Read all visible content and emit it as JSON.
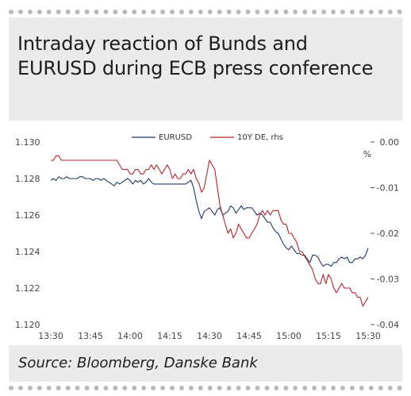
{
  "title": "Intraday reaction of Bunds and EURUSD during ECB press conference",
  "source": "Source: Bloomberg, Danske Bank",
  "chart_data": {
    "type": "line",
    "x": [
      "13:30",
      "13:45",
      "14:00",
      "14:15",
      "14:30",
      "14:45",
      "15:00",
      "15:15",
      "15:30"
    ],
    "y_left": {
      "ticks": [
        "1.130",
        "1.128",
        "1.126",
        "1.124",
        "1.122",
        "1.120"
      ],
      "lim": [
        1.12,
        1.13
      ]
    },
    "y_right": {
      "ticks": [
        "0.00",
        "-0.01",
        "-0.02",
        "-0.03",
        "-0.04"
      ],
      "lim": [
        -0.04,
        0.0
      ],
      "unit": "%"
    },
    "series": [
      {
        "name": "EURUSD",
        "axis": "left",
        "color": "#1f3a5f",
        "points": [
          [
            0,
            1.1279
          ],
          [
            1,
            1.128
          ],
          [
            2,
            1.1279
          ],
          [
            3,
            1.1281
          ],
          [
            4,
            1.128
          ],
          [
            5,
            1.128
          ],
          [
            6,
            1.1281
          ],
          [
            7,
            1.128
          ],
          [
            8,
            1.128
          ],
          [
            9,
            1.128
          ],
          [
            10,
            1.128
          ],
          [
            11,
            1.1281
          ],
          [
            12,
            1.1281
          ],
          [
            13,
            1.128
          ],
          [
            14,
            1.128
          ],
          [
            15,
            1.128
          ],
          [
            16,
            1.1279
          ],
          [
            17,
            1.128
          ],
          [
            18,
            1.128
          ],
          [
            19,
            1.1279
          ],
          [
            20,
            1.128
          ],
          [
            21,
            1.1279
          ],
          [
            22,
            1.1278
          ],
          [
            23,
            1.1277
          ],
          [
            24,
            1.1276
          ],
          [
            25,
            1.1278
          ],
          [
            26,
            1.1277
          ],
          [
            27,
            1.1278
          ],
          [
            28,
            1.1279
          ],
          [
            29,
            1.128
          ],
          [
            30,
            1.1279
          ],
          [
            31,
            1.1277
          ],
          [
            32,
            1.1279
          ],
          [
            33,
            1.1278
          ],
          [
            34,
            1.1279
          ],
          [
            35,
            1.1277
          ],
          [
            36,
            1.1278
          ],
          [
            37,
            1.128
          ],
          [
            38,
            1.1278
          ],
          [
            39,
            1.1277
          ],
          [
            40,
            1.1277
          ],
          [
            41,
            1.1277
          ],
          [
            42,
            1.1277
          ],
          [
            43,
            1.1277
          ],
          [
            44,
            1.1277
          ],
          [
            45,
            1.1277
          ],
          [
            46,
            1.1277
          ],
          [
            47,
            1.1277
          ],
          [
            48,
            1.1277
          ],
          [
            49,
            1.1277
          ],
          [
            50,
            1.1277
          ],
          [
            51,
            1.1277
          ],
          [
            52,
            1.1278
          ],
          [
            53,
            1.1279
          ],
          [
            54,
            1.1275
          ],
          [
            55,
            1.1268
          ],
          [
            56,
            1.1262
          ],
          [
            57,
            1.1258
          ],
          [
            58,
            1.1262
          ],
          [
            59,
            1.1263
          ],
          [
            60,
            1.1264
          ],
          [
            61,
            1.1262
          ],
          [
            62,
            1.126
          ],
          [
            63,
            1.1263
          ],
          [
            64,
            1.1264
          ],
          [
            65,
            1.126
          ],
          [
            66,
            1.1261
          ],
          [
            67,
            1.1262
          ],
          [
            68,
            1.1265
          ],
          [
            69,
            1.1264
          ],
          [
            70,
            1.1261
          ],
          [
            71,
            1.1263
          ],
          [
            72,
            1.1265
          ],
          [
            73,
            1.1263
          ],
          [
            74,
            1.1264
          ],
          [
            75,
            1.1264
          ],
          [
            76,
            1.1264
          ],
          [
            77,
            1.1262
          ],
          [
            78,
            1.126
          ],
          [
            79,
            1.1261
          ],
          [
            80,
            1.126
          ],
          [
            81,
            1.1258
          ],
          [
            82,
            1.1256
          ],
          [
            83,
            1.1256
          ],
          [
            84,
            1.1253
          ],
          [
            85,
            1.1251
          ],
          [
            86,
            1.125
          ],
          [
            87,
            1.1247
          ],
          [
            88,
            1.1244
          ],
          [
            89,
            1.1242
          ],
          [
            90,
            1.1241
          ],
          [
            91,
            1.1243
          ],
          [
            92,
            1.1241
          ],
          [
            93,
            1.1239
          ],
          [
            94,
            1.1239
          ],
          [
            95,
            1.1238
          ],
          [
            96,
            1.1238
          ],
          [
            97,
            1.1236
          ],
          [
            98,
            1.1234
          ],
          [
            99,
            1.1238
          ],
          [
            100,
            1.1238
          ],
          [
            101,
            1.1237
          ],
          [
            102,
            1.1234
          ],
          [
            103,
            1.1232
          ],
          [
            104,
            1.1233
          ],
          [
            105,
            1.1233
          ],
          [
            106,
            1.1232
          ],
          [
            107,
            1.1234
          ],
          [
            108,
            1.1234
          ],
          [
            109,
            1.1236
          ],
          [
            110,
            1.1237
          ],
          [
            111,
            1.1236
          ],
          [
            112,
            1.1237
          ],
          [
            113,
            1.1234
          ],
          [
            114,
            1.1234
          ],
          [
            115,
            1.1236
          ],
          [
            116,
            1.1236
          ],
          [
            117,
            1.1237
          ],
          [
            118,
            1.1236
          ],
          [
            119,
            1.1238
          ],
          [
            120,
            1.1242
          ]
        ]
      },
      {
        "name": "10Y DE, rhs",
        "axis": "right",
        "color": "#b3242e",
        "points": [
          [
            0,
            -0.004
          ],
          [
            1,
            -0.004
          ],
          [
            2,
            -0.003
          ],
          [
            3,
            -0.003
          ],
          [
            4,
            -0.004
          ],
          [
            5,
            -0.004
          ],
          [
            6,
            -0.004
          ],
          [
            7,
            -0.004
          ],
          [
            8,
            -0.004
          ],
          [
            9,
            -0.004
          ],
          [
            10,
            -0.004
          ],
          [
            11,
            -0.004
          ],
          [
            12,
            -0.004
          ],
          [
            13,
            -0.004
          ],
          [
            14,
            -0.004
          ],
          [
            15,
            -0.004
          ],
          [
            16,
            -0.004
          ],
          [
            17,
            -0.004
          ],
          [
            18,
            -0.004
          ],
          [
            19,
            -0.004
          ],
          [
            20,
            -0.004
          ],
          [
            21,
            -0.004
          ],
          [
            22,
            -0.004
          ],
          [
            23,
            -0.004
          ],
          [
            24,
            -0.004
          ],
          [
            25,
            -0.004
          ],
          [
            26,
            -0.005
          ],
          [
            27,
            -0.006
          ],
          [
            28,
            -0.006
          ],
          [
            29,
            -0.006
          ],
          [
            30,
            -0.007
          ],
          [
            31,
            -0.007
          ],
          [
            32,
            -0.006
          ],
          [
            33,
            -0.006
          ],
          [
            34,
            -0.007
          ],
          [
            35,
            -0.007
          ],
          [
            36,
            -0.006
          ],
          [
            37,
            -0.006
          ],
          [
            38,
            -0.005
          ],
          [
            39,
            -0.006
          ],
          [
            40,
            -0.005
          ],
          [
            41,
            -0.006
          ],
          [
            42,
            -0.007
          ],
          [
            43,
            -0.006
          ],
          [
            44,
            -0.005
          ],
          [
            45,
            -0.006
          ],
          [
            46,
            -0.008
          ],
          [
            47,
            -0.007
          ],
          [
            48,
            -0.008
          ],
          [
            49,
            -0.008
          ],
          [
            50,
            -0.007
          ],
          [
            51,
            -0.007
          ],
          [
            52,
            -0.006
          ],
          [
            53,
            -0.007
          ],
          [
            54,
            -0.006
          ],
          [
            55,
            -0.008
          ],
          [
            56,
            -0.009
          ],
          [
            57,
            -0.011
          ],
          [
            58,
            -0.01
          ],
          [
            59,
            -0.007
          ],
          [
            60,
            -0.004
          ],
          [
            61,
            -0.005
          ],
          [
            62,
            -0.006
          ],
          [
            63,
            -0.01
          ],
          [
            64,
            -0.014
          ],
          [
            65,
            -0.016
          ],
          [
            66,
            -0.018
          ],
          [
            67,
            -0.02
          ],
          [
            68,
            -0.019
          ],
          [
            69,
            -0.021
          ],
          [
            70,
            -0.02
          ],
          [
            71,
            -0.018
          ],
          [
            72,
            -0.019
          ],
          [
            73,
            -0.02
          ],
          [
            74,
            -0.021
          ],
          [
            75,
            -0.021
          ],
          [
            76,
            -0.02
          ],
          [
            77,
            -0.019
          ],
          [
            78,
            -0.018
          ],
          [
            79,
            -0.016
          ],
          [
            80,
            -0.015
          ],
          [
            81,
            -0.016
          ],
          [
            82,
            -0.015
          ],
          [
            83,
            -0.016
          ],
          [
            84,
            -0.015
          ],
          [
            85,
            -0.015
          ],
          [
            86,
            -0.015
          ],
          [
            87,
            -0.017
          ],
          [
            88,
            -0.018
          ],
          [
            89,
            -0.018
          ],
          [
            90,
            -0.02
          ],
          [
            91,
            -0.02
          ],
          [
            92,
            -0.021
          ],
          [
            93,
            -0.022
          ],
          [
            94,
            -0.024
          ],
          [
            95,
            -0.024
          ],
          [
            96,
            -0.025
          ],
          [
            97,
            -0.026
          ],
          [
            98,
            -0.027
          ],
          [
            99,
            -0.028
          ],
          [
            100,
            -0.03
          ],
          [
            101,
            -0.031
          ],
          [
            102,
            -0.031
          ],
          [
            103,
            -0.029
          ],
          [
            104,
            -0.031
          ],
          [
            105,
            -0.029
          ],
          [
            106,
            -0.03
          ],
          [
            107,
            -0.032
          ],
          [
            108,
            -0.033
          ],
          [
            109,
            -0.032
          ],
          [
            110,
            -0.031
          ],
          [
            111,
            -0.032
          ],
          [
            112,
            -0.032
          ],
          [
            113,
            -0.032
          ],
          [
            114,
            -0.033
          ],
          [
            115,
            -0.033
          ],
          [
            116,
            -0.034
          ],
          [
            117,
            -0.034
          ],
          [
            118,
            -0.036
          ],
          [
            119,
            -0.035
          ],
          [
            120,
            -0.034
          ]
        ]
      }
    ],
    "legend": {
      "placement": "top-center"
    },
    "grid": false
  }
}
